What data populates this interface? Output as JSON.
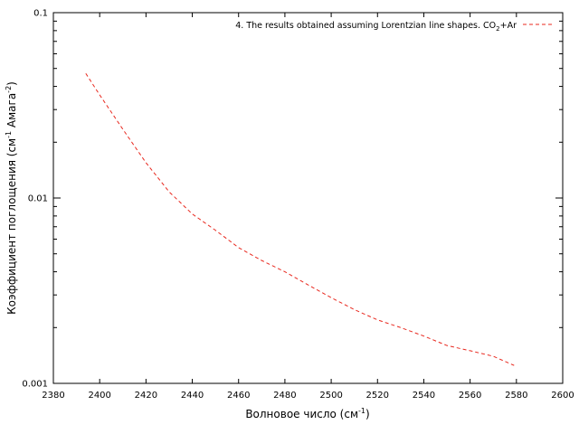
{
  "chart_data": {
    "type": "line",
    "title": "",
    "xlabel": {
      "prefix": "Волновое число (см",
      "sup": "-1",
      "suffix": ")"
    },
    "ylabel": {
      "prefix": "Коэффициент поглощения (см",
      "sup1": "-1",
      "mid": " Амага",
      "sup2": "-2",
      "suffix": ")"
    },
    "xlim": [
      2380,
      2600
    ],
    "ylim": [
      0.001,
      0.1
    ],
    "yscale": "log",
    "x_ticks": [
      2380,
      2400,
      2420,
      2440,
      2460,
      2480,
      2500,
      2520,
      2540,
      2560,
      2580,
      2600
    ],
    "y_ticks": [
      {
        "value": 0.001,
        "label": "0.001"
      },
      {
        "value": 0.01,
        "label": "0.01"
      },
      {
        "value": 0.1,
        "label": "0.1"
      }
    ],
    "grid": false,
    "legend_position": "top-right",
    "series": [
      {
        "name": {
          "prefix": "4. The results obtained assuming Lorentzian line shapes. CO",
          "sub": "2",
          "suffix": "+Ar"
        },
        "color": "#e8281e",
        "line_style": "dashed",
        "x": [
          2394,
          2400,
          2410,
          2420,
          2430,
          2440,
          2450,
          2460,
          2470,
          2480,
          2490,
          2500,
          2510,
          2520,
          2530,
          2540,
          2550,
          2560,
          2570,
          2579
        ],
        "y": [
          0.047,
          0.036,
          0.0235,
          0.0155,
          0.0108,
          0.0082,
          0.0067,
          0.0054,
          0.0046,
          0.004,
          0.0034,
          0.0029,
          0.0025,
          0.0022,
          0.002,
          0.0018,
          0.0016,
          0.0015,
          0.0014,
          0.00125
        ]
      }
    ]
  }
}
